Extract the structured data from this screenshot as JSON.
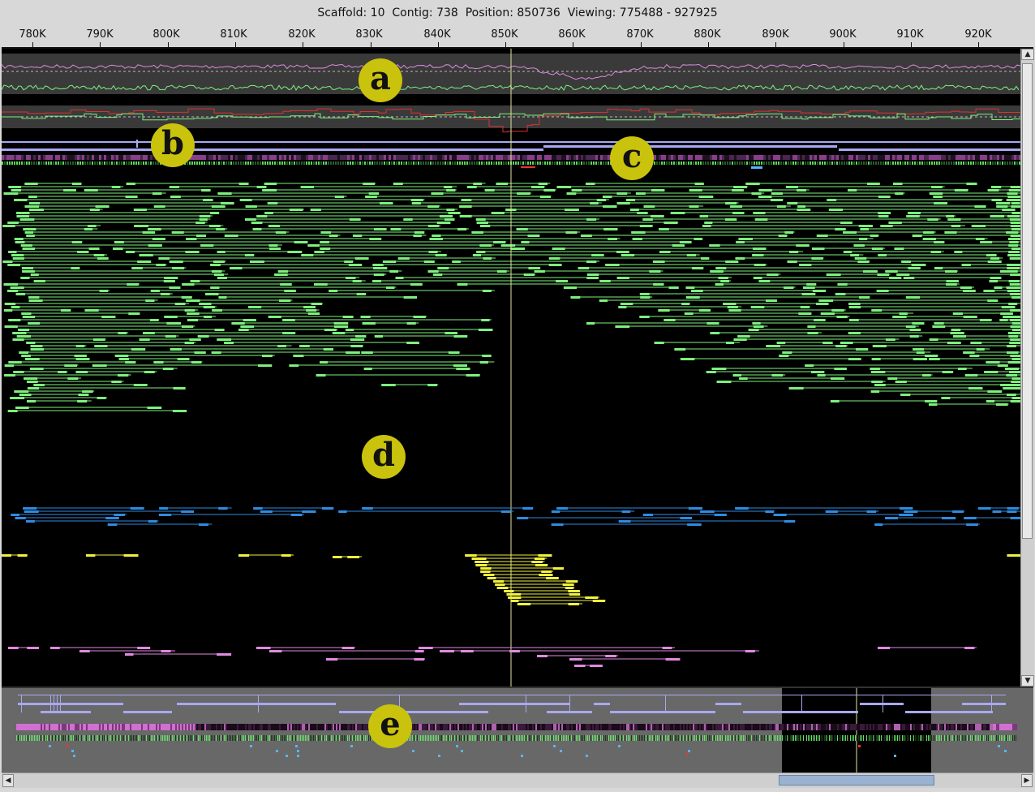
{
  "header": {
    "scaffold_label": "Scaffold:",
    "scaffold": "10",
    "contig_label": "Contig:",
    "contig": "738",
    "position_label": "Position:",
    "position": "850736",
    "viewing_label": "Viewing:",
    "viewing_range": "775488 - 927925"
  },
  "ruler": {
    "ticks": [
      "780K",
      "790K",
      "800K",
      "810K",
      "820K",
      "830K",
      "840K",
      "850K",
      "860K",
      "870K",
      "880K",
      "890K",
      "900K",
      "910K",
      "920K"
    ]
  },
  "markers": {
    "a": "a",
    "b": "b",
    "c": "c",
    "d": "d",
    "e": "e"
  },
  "colors": {
    "background": "#000000",
    "cursor_line": "#e6e6a0",
    "gc_track": "#e08ae0",
    "gc_secondary": "#7cf07c",
    "coverage_track": "#e03030",
    "feature_bar": "#a8a8f0",
    "mate_pair_good": "#7ef07e",
    "mate_pair_blue": "#2e8ce0",
    "mate_pair_yellow": "#f0f040",
    "mate_pair_pink": "#e08ae0",
    "overview_bg": "#686868",
    "marker_fill": "#c9c30d"
  },
  "vscroll": {
    "up_icon": "▲",
    "down_icon": "▼"
  },
  "hscroll": {
    "left_icon": "◀",
    "right_icon": "▶"
  }
}
